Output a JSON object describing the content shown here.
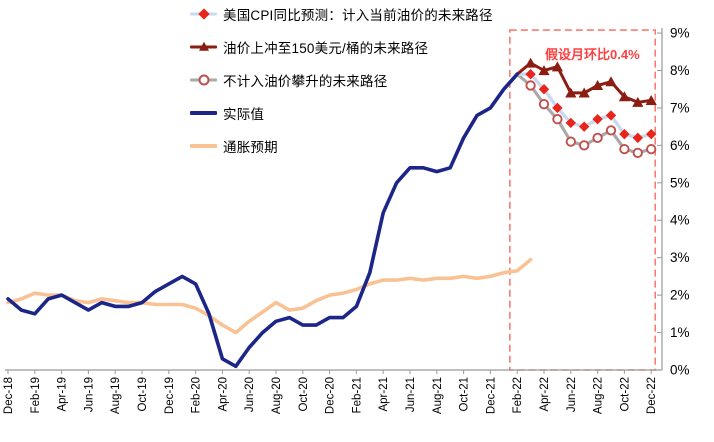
{
  "chart_data": {
    "type": "line",
    "title": "",
    "description": "US CPI YoY actuals with three forward forecast paths and inflation expectations",
    "legend_position": "top-left",
    "grid": false,
    "y_axis": {
      "side": "right",
      "min": 0,
      "max": 9,
      "step": 1,
      "tick_labels": [
        "0%",
        "1%",
        "2%",
        "3%",
        "4%",
        "5%",
        "6%",
        "7%",
        "8%",
        "9%"
      ]
    },
    "x_axis": {
      "total_months": 49,
      "months_per_labeled_tick": 2,
      "tick_labels": [
        "Dec-18",
        "Feb-19",
        "Apr-19",
        "Jun-19",
        "Aug-19",
        "Oct-19",
        "Dec-19",
        "Feb-20",
        "Apr-20",
        "Jun-20",
        "Aug-20",
        "Oct-20",
        "Dec-20",
        "Feb-21",
        "Apr-21",
        "Jun-21",
        "Aug-21",
        "Oct-21",
        "Dec-21",
        "Feb-22",
        "Apr-22",
        "Jun-22",
        "Aug-22",
        "Oct-22",
        "Dec-22"
      ]
    },
    "annotation": {
      "text": "假设月环比0.4%",
      "color": "#fe4040"
    },
    "forecast_box": {
      "color": "#f97c72",
      "start_month_index": 37.45,
      "end_month_index": 48.3,
      "top_value": 9.08
    },
    "series": [
      {
        "id": "forecast_current_oil",
        "label": "美国CPI同比预测：计入当前油价的未来路径",
        "marker": "diamond",
        "line_color": "#c9daf0",
        "marker_color": "#e8251b",
        "start_month_index": 38,
        "x_start_label": "Feb-22",
        "values": [
          7.9,
          7.9,
          7.5,
          7.0,
          6.6,
          6.5,
          6.7,
          6.8,
          6.3,
          6.2,
          6.3
        ]
      },
      {
        "id": "forecast_oil_150",
        "label": "油价上冲至150美元/桶的未来路径",
        "marker": "triangle",
        "line_color": "#8c1d12",
        "marker_color": "#8c1d12",
        "start_month_index": 38,
        "x_start_label": "Feb-22",
        "values": [
          7.9,
          8.2,
          8.0,
          8.1,
          7.4,
          7.4,
          7.6,
          7.7,
          7.3,
          7.15,
          7.2
        ]
      },
      {
        "id": "forecast_no_oil",
        "label": "不计入油价攀升的未来路径",
        "marker": "circle",
        "line_color": "#aaaaaa",
        "marker_color": "#c0504d",
        "start_month_index": 38,
        "x_start_label": "Feb-22",
        "values": [
          7.9,
          7.6,
          7.1,
          6.7,
          6.1,
          6.0,
          6.2,
          6.4,
          5.9,
          5.8,
          5.9
        ]
      },
      {
        "id": "actual",
        "label": "实际值",
        "marker": "none",
        "line_color": "#1b2688",
        "start_month_index": 0,
        "x_start_label": "Dec-18",
        "values": [
          1.9,
          1.6,
          1.5,
          1.9,
          2.0,
          1.8,
          1.6,
          1.8,
          1.7,
          1.7,
          1.8,
          2.1,
          2.3,
          2.5,
          2.3,
          1.5,
          0.3,
          0.1,
          0.6,
          1.0,
          1.3,
          1.4,
          1.2,
          1.2,
          1.4,
          1.4,
          1.7,
          2.6,
          4.2,
          5.0,
          5.4,
          5.4,
          5.3,
          5.4,
          6.2,
          6.8,
          7.0,
          7.5,
          7.9
        ]
      },
      {
        "id": "inflation_expectations",
        "label": "通胀预期",
        "marker": "none",
        "line_color": "#f8c295",
        "start_month_index": 0,
        "x_start_label": "Dec-18",
        "values": [
          1.8,
          1.9,
          2.05,
          2.0,
          2.0,
          1.85,
          1.8,
          1.9,
          1.85,
          1.8,
          1.8,
          1.75,
          1.75,
          1.75,
          1.65,
          1.45,
          1.2,
          1.0,
          1.3,
          1.55,
          1.8,
          1.6,
          1.65,
          1.85,
          2.0,
          2.05,
          2.15,
          2.3,
          2.4,
          2.4,
          2.45,
          2.4,
          2.45,
          2.45,
          2.5,
          2.45,
          2.5,
          2.6,
          2.65,
          2.95
        ]
      }
    ]
  }
}
